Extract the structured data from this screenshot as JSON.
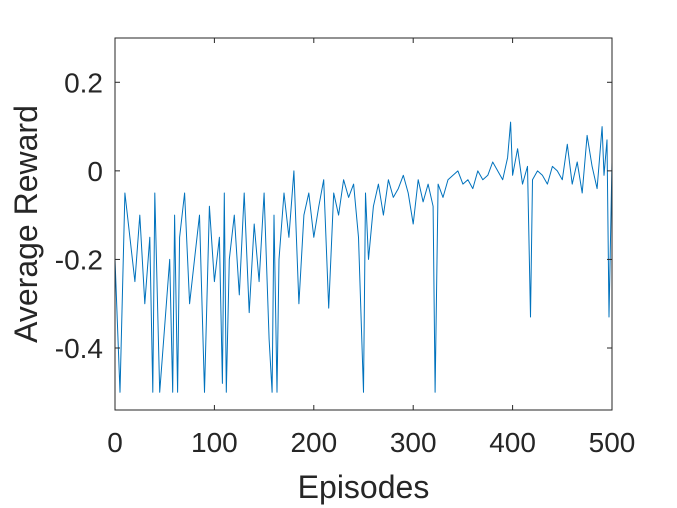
{
  "chart_data": {
    "type": "line",
    "title": "",
    "xlabel": "Episodes",
    "ylabel": "Average Reward",
    "xlim": [
      0,
      500
    ],
    "ylim": [
      -0.54,
      0.3
    ],
    "xticks": [
      0,
      100,
      200,
      300,
      400,
      500
    ],
    "yticks": [
      -0.4,
      -0.2,
      0,
      0.2
    ],
    "xtick_labels": [
      "0",
      "100",
      "200",
      "300",
      "400",
      "500"
    ],
    "ytick_labels": [
      "-0.4",
      "-0.2",
      "0",
      "0.2"
    ],
    "grid": false,
    "box": true,
    "line_color": "#0072BD",
    "axis_color": "#262626",
    "series": [
      {
        "x": [
          0,
          5,
          10,
          15,
          20,
          25,
          30,
          35,
          38,
          40,
          45,
          50,
          55,
          58,
          60,
          63,
          65,
          70,
          75,
          80,
          85,
          90,
          95,
          100,
          105,
          108,
          110,
          112,
          115,
          120,
          125,
          130,
          135,
          140,
          145,
          150,
          155,
          158,
          160,
          163,
          165,
          170,
          175,
          180,
          185,
          190,
          195,
          200,
          205,
          210,
          215,
          220,
          225,
          230,
          235,
          240,
          245,
          250,
          252,
          255,
          260,
          265,
          270,
          275,
          280,
          285,
          290,
          295,
          300,
          305,
          310,
          315,
          320,
          322,
          325,
          330,
          335,
          340,
          345,
          350,
          355,
          360,
          365,
          370,
          375,
          380,
          385,
          390,
          395,
          398,
          400,
          405,
          410,
          415,
          418,
          420,
          425,
          430,
          435,
          440,
          445,
          450,
          455,
          460,
          465,
          470,
          475,
          480,
          485,
          490,
          492,
          495,
          497,
          500
        ],
        "y": [
          -0.2,
          -0.5,
          -0.05,
          -0.15,
          -0.25,
          -0.1,
          -0.3,
          -0.15,
          -0.5,
          -0.05,
          -0.5,
          -0.35,
          -0.2,
          -0.5,
          -0.1,
          -0.5,
          -0.15,
          -0.05,
          -0.3,
          -0.2,
          -0.1,
          -0.5,
          -0.08,
          -0.25,
          -0.15,
          -0.48,
          -0.05,
          -0.5,
          -0.2,
          -0.1,
          -0.28,
          -0.05,
          -0.32,
          -0.12,
          -0.25,
          -0.05,
          -0.38,
          -0.5,
          -0.1,
          -0.5,
          -0.2,
          -0.05,
          -0.15,
          0.0,
          -0.3,
          -0.1,
          -0.05,
          -0.15,
          -0.08,
          -0.02,
          -0.31,
          -0.05,
          -0.1,
          -0.02,
          -0.06,
          -0.03,
          -0.15,
          -0.5,
          -0.05,
          -0.2,
          -0.08,
          -0.03,
          -0.1,
          -0.02,
          -0.06,
          -0.04,
          -0.01,
          -0.05,
          -0.12,
          -0.02,
          -0.07,
          -0.03,
          -0.08,
          -0.5,
          -0.03,
          -0.06,
          -0.02,
          -0.01,
          0.0,
          -0.03,
          -0.02,
          -0.04,
          0.0,
          -0.02,
          -0.01,
          0.02,
          0.0,
          -0.02,
          0.03,
          0.11,
          -0.01,
          0.05,
          -0.03,
          0.01,
          -0.33,
          -0.02,
          0.0,
          -0.01,
          -0.03,
          0.01,
          0.0,
          -0.02,
          0.06,
          -0.03,
          0.02,
          -0.05,
          0.08,
          0.01,
          -0.04,
          0.1,
          -0.01,
          0.07,
          -0.33,
          0.02
        ]
      }
    ]
  }
}
